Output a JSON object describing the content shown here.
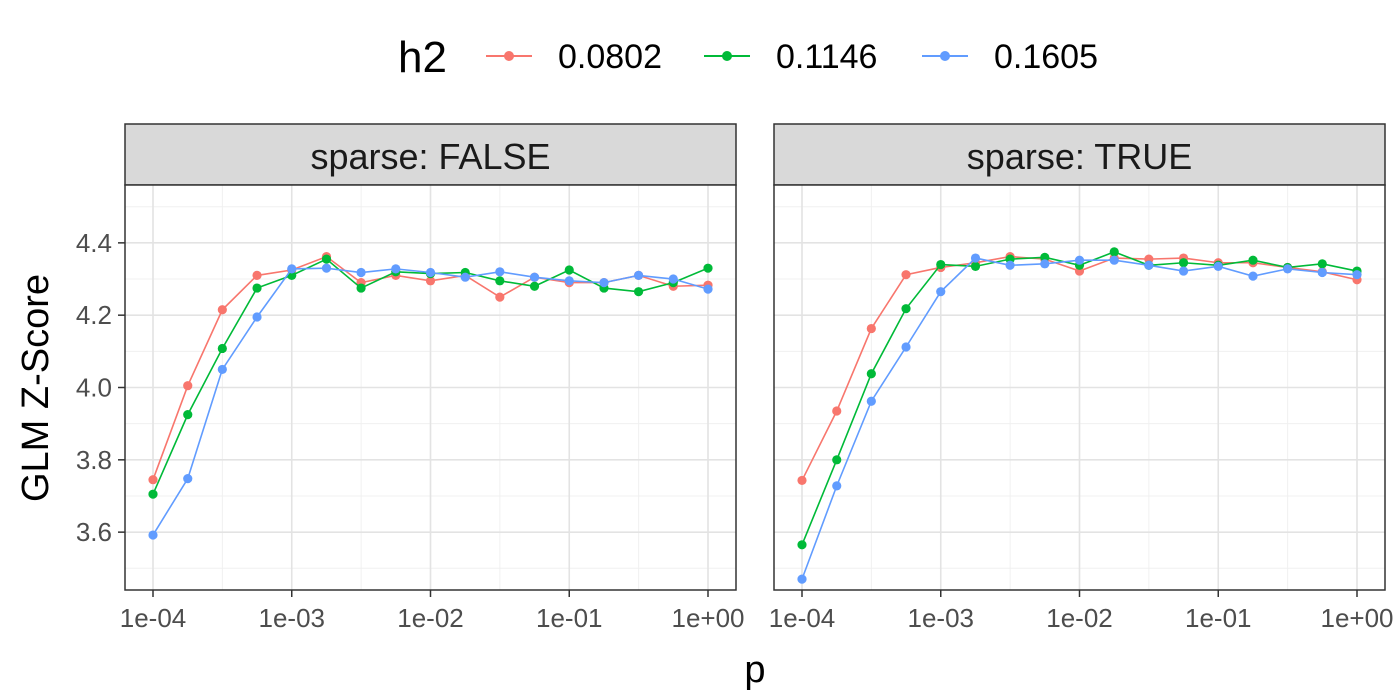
{
  "chart_data": {
    "type": "line",
    "xlabel": "p",
    "ylabel": "GLM Z-Score",
    "x_scale": "log10",
    "xlim": [
      0.0001,
      1
    ],
    "ylim": [
      3.44,
      4.56
    ],
    "x_ticks": [
      {
        "value": 0.0001,
        "label": "1e-04"
      },
      {
        "value": 0.001,
        "label": "1e-03"
      },
      {
        "value": 0.01,
        "label": "1e-02"
      },
      {
        "value": 0.1,
        "label": "1e-01"
      },
      {
        "value": 1,
        "label": "1e+00"
      }
    ],
    "y_ticks": [
      {
        "value": 3.6,
        "label": "3.6"
      },
      {
        "value": 3.8,
        "label": "3.8"
      },
      {
        "value": 4.0,
        "label": "4.0"
      },
      {
        "value": 4.2,
        "label": "4.2"
      },
      {
        "value": 4.4,
        "label": "4.4"
      }
    ],
    "grid": true,
    "legend": {
      "title": "h2",
      "position": "top",
      "entries": [
        {
          "label": "0.0802",
          "color": "#F8766D"
        },
        {
          "label": "0.1146",
          "color": "#00BA38"
        },
        {
          "label": "0.1605",
          "color": "#619CFF"
        }
      ]
    },
    "x": [
      0.0001,
      0.000178,
      0.000316,
      0.000562,
      0.001,
      0.00178,
      0.00316,
      0.00562,
      0.01,
      0.0178,
      0.0316,
      0.0562,
      0.1,
      0.178,
      0.316,
      0.562,
      1
    ],
    "facets": [
      {
        "strip": "sparse: FALSE",
        "series": [
          {
            "name": "0.0802",
            "color": "#F8766D",
            "values": [
              3.745,
              4.005,
              4.215,
              4.31,
              4.325,
              4.362,
              4.29,
              4.31,
              4.295,
              4.31,
              4.25,
              4.305,
              4.29,
              4.29,
              4.31,
              4.28,
              4.283
            ]
          },
          {
            "name": "0.1146",
            "color": "#00BA38",
            "values": [
              3.705,
              3.925,
              4.108,
              4.275,
              4.31,
              4.355,
              4.275,
              4.32,
              4.315,
              4.318,
              4.295,
              4.28,
              4.325,
              4.275,
              4.265,
              4.29,
              4.33
            ]
          },
          {
            "name": "0.1605",
            "color": "#619CFF",
            "values": [
              3.592,
              3.748,
              4.05,
              4.195,
              4.328,
              4.33,
              4.318,
              4.328,
              4.318,
              4.305,
              4.32,
              4.305,
              4.295,
              4.29,
              4.31,
              4.3,
              4.272
            ]
          }
        ]
      },
      {
        "strip": "sparse: TRUE",
        "series": [
          {
            "name": "0.0802",
            "color": "#F8766D",
            "values": [
              3.743,
              3.935,
              4.163,
              4.312,
              4.332,
              4.345,
              4.362,
              4.355,
              4.322,
              4.358,
              4.355,
              4.358,
              4.345,
              4.345,
              4.332,
              4.32,
              4.298
            ]
          },
          {
            "name": "0.1146",
            "color": "#00BA38",
            "values": [
              3.565,
              3.8,
              4.038,
              4.218,
              4.34,
              4.335,
              4.355,
              4.36,
              4.338,
              4.375,
              4.338,
              4.345,
              4.338,
              4.352,
              4.332,
              4.342,
              4.322
            ]
          },
          {
            "name": "0.1605",
            "color": "#619CFF",
            "values": [
              3.47,
              3.728,
              3.962,
              4.112,
              4.265,
              4.358,
              4.338,
              4.342,
              4.352,
              4.352,
              4.338,
              4.322,
              4.335,
              4.308,
              4.328,
              4.318,
              4.312
            ]
          }
        ]
      }
    ]
  }
}
